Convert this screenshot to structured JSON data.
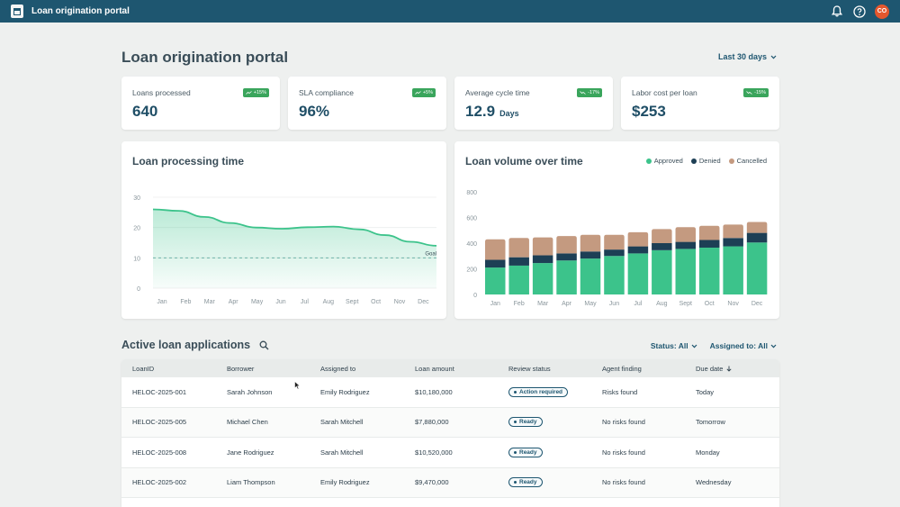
{
  "header": {
    "app_title": "Loan origination portal",
    "user_initials": "CO"
  },
  "page": {
    "title": "Loan origination portal",
    "date_range": "Last 30 days"
  },
  "kpis": [
    {
      "label": "Loans processed",
      "value": "640",
      "unit": "",
      "badge": "+15%"
    },
    {
      "label": "SLA compliance",
      "value": "96%",
      "unit": "",
      "badge": "+5%"
    },
    {
      "label": "Average cycle time",
      "value": "12.9",
      "unit": "Days",
      "badge": "-17%"
    },
    {
      "label": "Labor cost per loan",
      "value": "$253",
      "unit": "",
      "badge": "-15%"
    }
  ],
  "colors": {
    "approved": "#3cc38b",
    "denied": "#1d3f55",
    "cancelled": "#c49a80",
    "accent": "#1e5670"
  },
  "chart_data": [
    {
      "type": "area",
      "title": "Loan processing time",
      "categories": [
        "Jan",
        "Feb",
        "Mar",
        "Apr",
        "May",
        "Jun",
        "Jul",
        "Aug",
        "Sept",
        "Oct",
        "Nov",
        "Dec"
      ],
      "yticks": [
        "30",
        "20",
        "10",
        "0"
      ],
      "ylim": [
        0,
        30
      ],
      "series": [
        {
          "values": [
            26,
            25.5,
            23.5,
            21.5,
            20,
            19.6,
            20.1,
            20.3,
            19.4,
            17.5,
            15.3,
            14
          ]
        }
      ],
      "goal": {
        "label": "Goal",
        "value": 10
      }
    },
    {
      "type": "bar",
      "title": "Loan volume over time",
      "categories": [
        "Jan",
        "Feb",
        "Mar",
        "Apr",
        "May",
        "Jun",
        "Jul",
        "Aug",
        "Sept",
        "Oct",
        "Nov",
        "Dec"
      ],
      "yticks": [
        "800",
        "600",
        "400",
        "200",
        "0"
      ],
      "ylim": [
        0,
        800
      ],
      "stacked": true,
      "legend_position": "top-right",
      "series": [
        {
          "name": "Approved",
          "values": [
            210,
            225,
            245,
            265,
            280,
            300,
            320,
            345,
            355,
            365,
            375,
            405
          ]
        },
        {
          "name": "Denied",
          "values": [
            60,
            65,
            60,
            55,
            55,
            50,
            55,
            55,
            55,
            60,
            65,
            75
          ]
        },
        {
          "name": "Cancelled",
          "values": [
            160,
            150,
            140,
            135,
            130,
            115,
            110,
            110,
            115,
            110,
            105,
            85
          ]
        }
      ]
    }
  ],
  "applications": {
    "title": "Active loan applications",
    "filters": {
      "status": "Status: All",
      "assigned": "Assigned to: All"
    },
    "columns": [
      "LoanID",
      "Borrower",
      "Assigned to",
      "Loan amount",
      "Review status",
      "Agent finding",
      "Due date"
    ],
    "rows": [
      {
        "id": "HELOC-2025-001",
        "borrower": "Sarah Johnson",
        "assigned": "Emily Rodriguez",
        "amount": "$10,180,000",
        "status": "Action required",
        "finding": "Risks found",
        "due": "Today"
      },
      {
        "id": "HELOC-2025-005",
        "borrower": "Michael Chen",
        "assigned": "Sarah Mitchell",
        "amount": "$7,880,000",
        "status": "Ready",
        "finding": "No risks found",
        "due": "Tomorrow"
      },
      {
        "id": "HELOC-2025-008",
        "borrower": "Jane Rodriguez",
        "assigned": "Sarah Mitchell",
        "amount": "$10,520,000",
        "status": "Ready",
        "finding": "No risks found",
        "due": "Monday"
      },
      {
        "id": "HELOC-2025-002",
        "borrower": "Liam Thompson",
        "assigned": "Emily Rodriguez",
        "amount": "$9,470,000",
        "status": "Ready",
        "finding": "No risks found",
        "due": "Wednesday"
      }
    ]
  }
}
